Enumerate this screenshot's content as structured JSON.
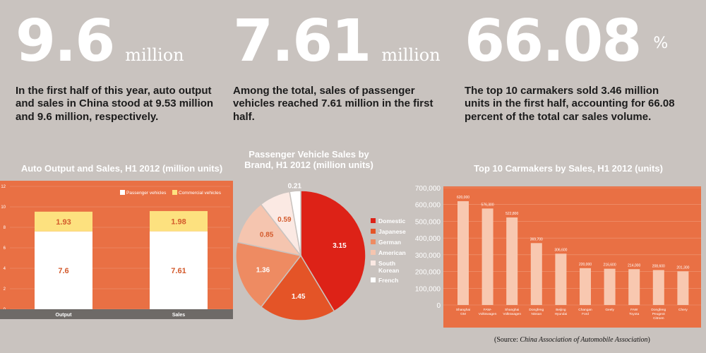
{
  "stats": [
    {
      "number": "9.6",
      "unit": "million",
      "description": "In the first half of this year, auto output and sales in China stood at 9.53 million and 9.6 million, respectively."
    },
    {
      "number": "7.61",
      "unit": "million",
      "description": "Among the total, sales of passenger vehicles reached 7.61 million in the first half."
    },
    {
      "number": "66.08",
      "unit": "%",
      "description": "The top 10 carmakers sold 3.46 million units in the first half, accounting for 66.08 percent of the total car sales volume."
    }
  ],
  "chart_data": [
    {
      "type": "bar",
      "stacked": true,
      "title": "Auto Output and Sales, H1 2012 (million units)",
      "categories": [
        "Output",
        "Sales"
      ],
      "series": [
        {
          "name": "Passenger vehicles",
          "values": [
            7.6,
            7.61
          ],
          "color": "#ffffff"
        },
        {
          "name": "Commercial vehicles",
          "values": [
            1.93,
            1.98
          ],
          "color": "#fde17f"
        }
      ],
      "ylim": [
        0,
        12
      ],
      "yticks": [
        "0",
        "2",
        "4",
        "6",
        "8",
        "10",
        "12"
      ],
      "legend": "top-right",
      "grid": true
    },
    {
      "type": "pie",
      "title": "Passenger Vehicle Sales by Brand, H1 2012 (million units)",
      "labels": [
        "Domestic",
        "Japanese",
        "German",
        "American",
        "South Korean",
        "French"
      ],
      "values": [
        3.15,
        1.45,
        1.36,
        0.85,
        0.59,
        0.21
      ],
      "value_labels": [
        "3.15",
        "1.45",
        "1.36",
        "0.85",
        "0.59",
        "0.21"
      ],
      "colors": [
        "#dd2217",
        "#e45427",
        "#ee8b62",
        "#f5c5af",
        "#fbe9e3",
        "#ffffff"
      ],
      "legend": "right"
    },
    {
      "type": "bar",
      "title": "Top 10 Carmakers by Sales, H1 2012 (units)",
      "categories": [
        "Shanghai GM",
        "FAW-Volkswagen",
        "Shanghai Volkswagen",
        "Dongfeng Nissan",
        "Beijing Hyundai",
        "Changan Ford",
        "Geely",
        "FAW Toyota",
        "Dongfeng Peugeot Citroen",
        "Chery"
      ],
      "values": [
        620000,
        576300,
        522800,
        369700,
        306600,
        220000,
        216600,
        214000,
        208600,
        201300
      ],
      "value_labels": [
        "620,000",
        "576,300",
        "522,800",
        "369,700",
        "306,600",
        "220,000",
        "216,600",
        "214,000",
        "208,600",
        "201,300"
      ],
      "ylim": [
        0,
        700000
      ],
      "yticks": [
        "0",
        "100,000",
        "200,000",
        "300,000",
        "400,000",
        "500,000",
        "600,000",
        "700,000"
      ],
      "grid": true
    }
  ],
  "source": {
    "prefix": "(Source:",
    "name": "China Association of Automobile Association",
    "suffix": ")"
  }
}
